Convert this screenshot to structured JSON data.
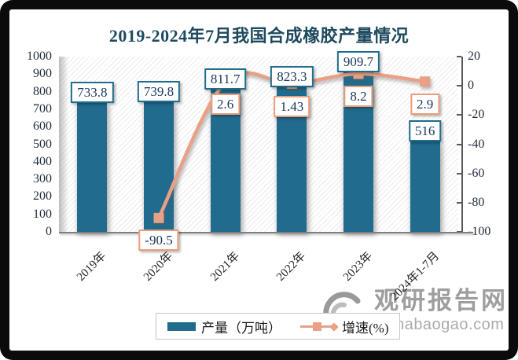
{
  "title": "2019-2024年7月我国合成橡胶产量情况",
  "chart_data": {
    "type": "combo-bar-line",
    "categories": [
      "2019年",
      "2020年",
      "2021年",
      "2022年",
      "2023年",
      "2024年1-7月"
    ],
    "series": [
      {
        "name": "产量（万吨）",
        "type": "bar",
        "axis": "left",
        "values": [
          733.8,
          739.8,
          811.7,
          823.3,
          909.7,
          516
        ],
        "labels": [
          "733.8",
          "739.8",
          "811.7",
          "823.3",
          "909.7",
          "516"
        ]
      },
      {
        "name": "增速(%)",
        "type": "line",
        "axis": "right",
        "values": [
          null,
          -90.5,
          2.6,
          1.43,
          8.2,
          2.9
        ],
        "labels": [
          null,
          "-90.5",
          "2.6",
          "1.43",
          "8.2",
          "2.9"
        ]
      }
    ],
    "left_axis": {
      "min": 0,
      "max": 1000,
      "step": 100,
      "ticks": [
        "1000",
        "900",
        "800",
        "700",
        "600",
        "500",
        "400",
        "300",
        "200",
        "100",
        "0"
      ]
    },
    "right_axis": {
      "min": -100,
      "max": 20,
      "step": 20,
      "ticks": [
        "20",
        "0",
        "-20",
        "-40",
        "-60",
        "-80",
        "-100"
      ]
    },
    "grid": false,
    "legend_position": "bottom",
    "plot_background": "diagonal-hatch"
  },
  "watermark": {
    "name": "观研报告网",
    "domain": "chinabaogao.com"
  },
  "colors": {
    "bar": "#206B8E",
    "line": "#E8A086",
    "bar_label_border": "#1F6D8E",
    "line_label_border": "#EC9E7C",
    "title": "#1E4A5F",
    "axis_text": "#1F2B3C",
    "watermark": "#A6A6A6"
  }
}
